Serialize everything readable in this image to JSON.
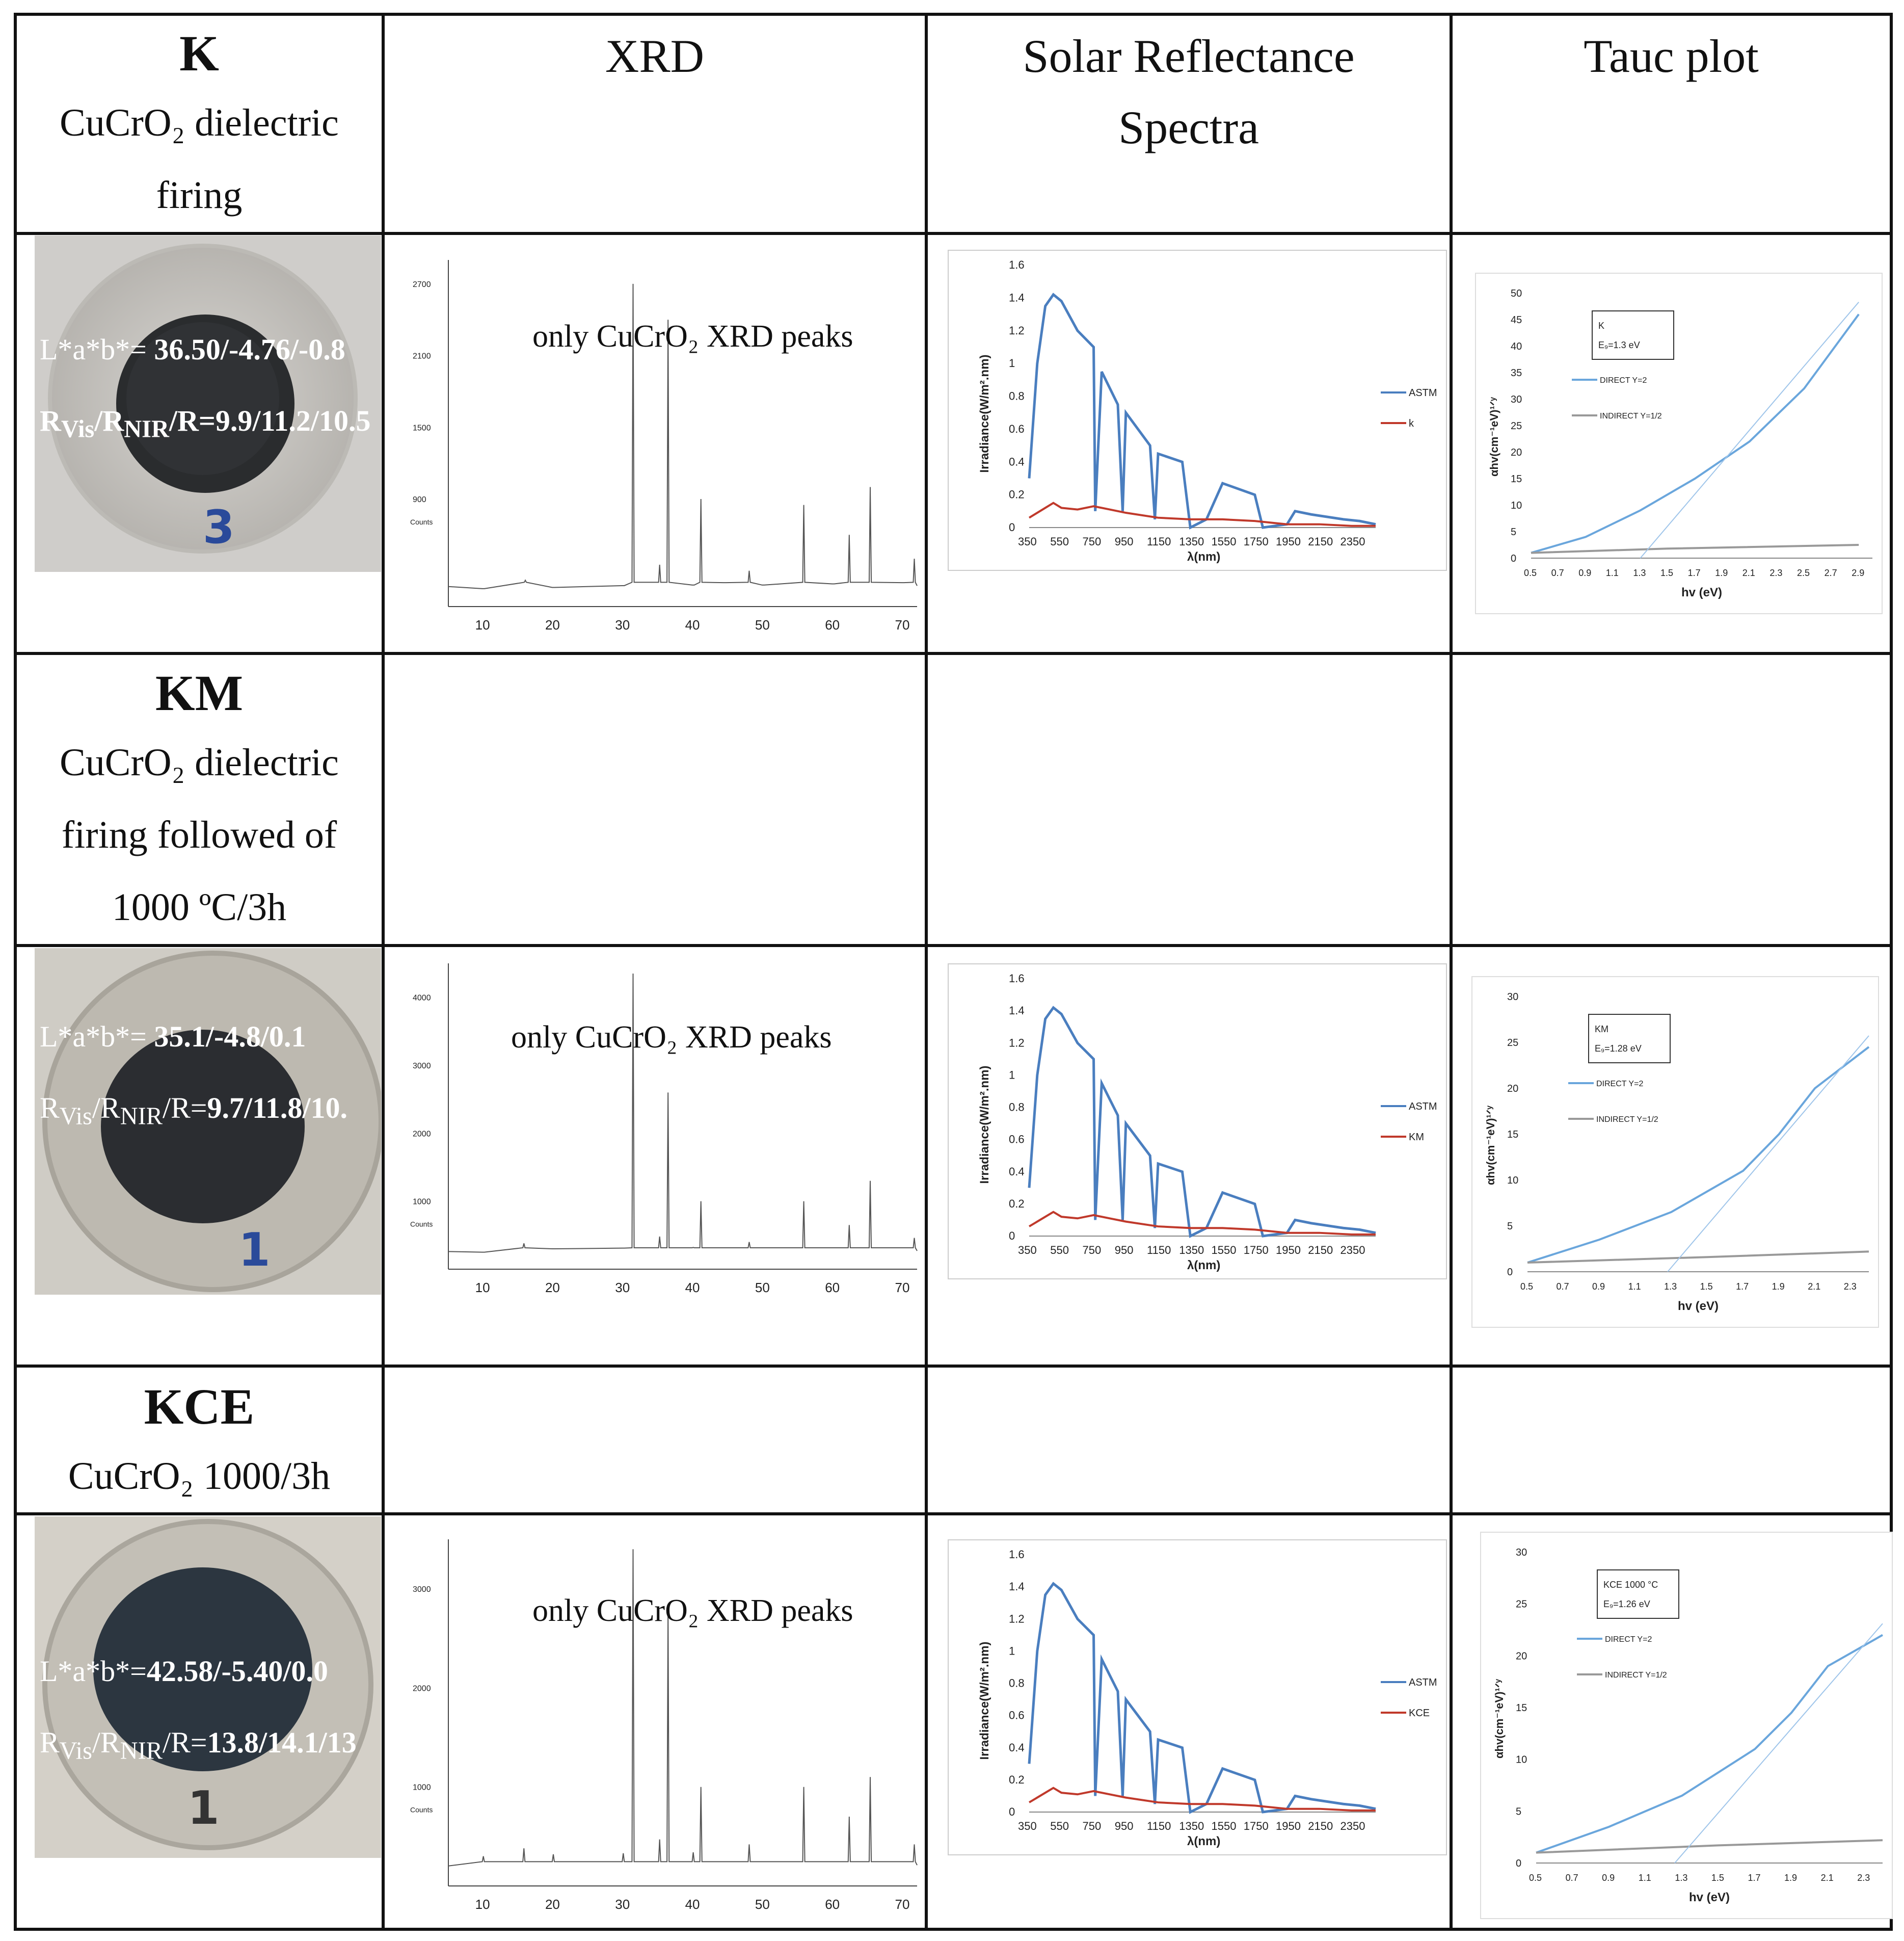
{
  "headers": {
    "xrd": "XRD",
    "solar_line1": "Solar Reflectance",
    "solar_line2": "Spectra",
    "tauc": "Tauc plot"
  },
  "samples": [
    {
      "code": "K",
      "desc_lines": [
        "CuCrO₂ dielectric",
        "firing"
      ],
      "photo": {
        "label_number": "3",
        "lab_prefix": "L*a*b*= ",
        "lab_values": "36.50/-4.76/-0.8",
        "r_prefix": "R",
        "r_vis_sub": "Vis",
        "r_sep": "/R",
        "r_nir_sub": "NIR",
        "r_mid": "/R=",
        "r_values": "9.9/11.2/10.5"
      },
      "xrd_note": "only CuCrO₂ XRD peaks",
      "solar_legend": [
        "ASTM",
        "k"
      ],
      "tauc_box": [
        "K",
        "E₉=1.3 eV"
      ]
    },
    {
      "code": "KM",
      "desc_lines": [
        "CuCrO₂ dielectric",
        "firing followed of",
        "1000 ºC/3h"
      ],
      "photo": {
        "label_number": "1",
        "lab_prefix": "L*a*b*=  ",
        "lab_values": "35.1/-4.8/0.1",
        "r_prefix": "R",
        "r_vis_sub": "Vis",
        "r_sep": "/R",
        "r_nir_sub": "NIR",
        "r_mid": "/R=",
        "r_values": "9.7/11.8/10."
      },
      "xrd_note": "only CuCrO₂ XRD peaks",
      "solar_legend": [
        "ASTM",
        "KM"
      ],
      "tauc_box": [
        "KM",
        "E₉=1.28 eV"
      ]
    },
    {
      "code": "KCE",
      "desc_lines": [
        "CuCrO₂ 1000/3h"
      ],
      "photo": {
        "label_number": "1",
        "lab_prefix": "L*a*b*=",
        "lab_values": "42.58/-5.40/0.0",
        "r_prefix": "R",
        "r_vis_sub": "Vis",
        "r_sep": "/R",
        "r_nir_sub": "NIR",
        "r_mid": "/R=",
        "r_values": "13.8/14.1/13"
      },
      "xrd_note": "only CuCrO₂ XRD peaks",
      "solar_legend": [
        "ASTM",
        "KCE"
      ],
      "tauc_box": [
        "KCE 1000 °C",
        "E₉=1.26 eV"
      ]
    }
  ],
  "chart_data": [
    {
      "type": "line",
      "panel": "xrd-K",
      "x": [
        10,
        16,
        20,
        30,
        31.4,
        35.2,
        36.4,
        40,
        41.1,
        44.5,
        48,
        50,
        55.8,
        60,
        62.3,
        65.3,
        70,
        71.6
      ],
      "y": [
        150,
        220,
        160,
        175,
        2700,
        350,
        2400,
        180,
        900,
        200,
        300,
        180,
        850,
        190,
        600,
        1000,
        200,
        400
      ],
      "xticks": [
        10,
        20,
        30,
        40,
        50,
        60,
        70
      ],
      "yticks": [
        900,
        1500,
        2100,
        2700
      ],
      "ylabel": "Counts",
      "ylim": [
        0,
        2900
      ],
      "xlim": [
        5,
        72
      ]
    },
    {
      "type": "line",
      "panel": "xrd-KM",
      "x": [
        10,
        15.8,
        20,
        30,
        31.4,
        35.2,
        36.4,
        40,
        41.1,
        48,
        55.8,
        62.3,
        65.3,
        71.6
      ],
      "y": [
        250,
        380,
        300,
        310,
        4350,
        480,
        2600,
        320,
        1000,
        400,
        1000,
        650,
        1300,
        460
      ],
      "xticks": [
        10,
        20,
        30,
        40,
        50,
        60,
        70
      ],
      "yticks": [
        1000,
        2000,
        3000,
        4000
      ],
      "ylabel": "Counts",
      "ylim": [
        0,
        4500
      ],
      "xlim": [
        5,
        72
      ]
    },
    {
      "type": "line",
      "panel": "xrd-KCE",
      "x": [
        10,
        15.8,
        20,
        30,
        31.4,
        35.2,
        36.4,
        40,
        41.1,
        48,
        55.8,
        62.3,
        65.3,
        71.6
      ],
      "y": [
        300,
        380,
        320,
        330,
        3400,
        470,
        2800,
        340,
        1000,
        420,
        1000,
        700,
        1100,
        420
      ],
      "xticks": [
        10,
        20,
        30,
        40,
        50,
        60,
        70
      ],
      "yticks": [
        1000,
        2000,
        3000
      ],
      "ylabel": "Counts",
      "ylim": [
        0,
        3500
      ],
      "xlim": [
        5,
        72
      ]
    },
    {
      "type": "line",
      "panel": "solar",
      "xlabel": "λ(nm)",
      "ylabel": "Irradiance(W/m².nm)",
      "xticks": [
        350,
        550,
        750,
        950,
        1150,
        1350,
        1550,
        1750,
        1950,
        2150,
        2350
      ],
      "yticks": [
        0,
        0.2,
        0.4,
        0.6,
        0.8,
        1,
        1.2,
        1.4,
        1.6
      ],
      "xlim": [
        350,
        2500
      ],
      "ylim": [
        0,
        1.6
      ],
      "series": [
        {
          "name": "ASTM",
          "x": [
            350,
            400,
            450,
            500,
            550,
            650,
            750,
            760,
            800,
            900,
            930,
            950,
            1100,
            1130,
            1150,
            1300,
            1350,
            1450,
            1550,
            1750,
            1800,
            1950,
            2000,
            2100,
            2300,
            2400,
            2500
          ],
          "y": [
            0.3,
            1.0,
            1.35,
            1.42,
            1.38,
            1.2,
            1.1,
            0.1,
            0.95,
            0.75,
            0.1,
            0.7,
            0.5,
            0.05,
            0.45,
            0.4,
            0.0,
            0.05,
            0.27,
            0.2,
            0.0,
            0.02,
            0.1,
            0.08,
            0.05,
            0.04,
            0.02
          ]
        },
        {
          "name": "k",
          "x": [
            350,
            450,
            500,
            550,
            650,
            750,
            850,
            950,
            1150,
            1350,
            1550,
            1750,
            1950,
            2150,
            2350,
            2500
          ],
          "y": [
            0.06,
            0.12,
            0.15,
            0.12,
            0.11,
            0.13,
            0.11,
            0.09,
            0.06,
            0.05,
            0.05,
            0.04,
            0.02,
            0.02,
            0.01,
            0.01
          ]
        }
      ]
    },
    {
      "type": "line",
      "panel": "tauc-K",
      "xlabel": "hv (eV)",
      "ylabel": "αhv(cm⁻¹eV)¹ᐟʸ",
      "xticks": [
        0.5,
        0.7,
        0.9,
        1.1,
        1.3,
        1.5,
        1.7,
        1.9,
        2.1,
        2.3,
        2.5,
        2.7,
        2.9
      ],
      "yticks": [
        0,
        5,
        10,
        15,
        20,
        25,
        30,
        35,
        40,
        45,
        50
      ],
      "xlim": [
        0.5,
        3.0
      ],
      "ylim": [
        0,
        50
      ],
      "series": [
        {
          "name": "DIRECT Y=2",
          "x": [
            0.5,
            0.9,
            1.3,
            1.7,
            2.1,
            2.5,
            2.9
          ],
          "y": [
            1,
            4,
            9,
            15,
            22,
            32,
            46
          ]
        },
        {
          "name": "INDIRECT Y=1/2",
          "x": [
            0.5,
            1.5,
            2.9
          ],
          "y": [
            1,
            1.8,
            2.5
          ]
        }
      ]
    },
    {
      "type": "line",
      "panel": "tauc-KM",
      "xlabel": "hv (eV)",
      "ylabel": "αhv(cm⁻¹eV)¹ᐟʸ",
      "xticks": [
        0.5,
        0.7,
        0.9,
        1.1,
        1.3,
        1.5,
        1.7,
        1.9,
        2.1,
        2.3
      ],
      "yticks": [
        0,
        5,
        10,
        15,
        20,
        25,
        30
      ],
      "xlim": [
        0.5,
        2.4
      ],
      "ylim": [
        0,
        30
      ],
      "series": [
        {
          "name": "DIRECT Y=2",
          "x": [
            0.5,
            0.9,
            1.3,
            1.7,
            1.9,
            2.1,
            2.4
          ],
          "y": [
            1,
            3.5,
            6.5,
            11,
            15,
            20,
            24.5
          ]
        },
        {
          "name": "INDIRECT Y=1/2",
          "x": [
            0.5,
            1.5,
            2.4
          ],
          "y": [
            1,
            1.6,
            2.2
          ]
        }
      ]
    },
    {
      "type": "line",
      "panel": "tauc-KCE",
      "xlabel": "hv (eV)",
      "ylabel": "αhv(cm⁻¹eV)¹ᐟʸ",
      "xticks": [
        0.5,
        0.7,
        0.9,
        1.1,
        1.3,
        1.5,
        1.7,
        1.9,
        2.1,
        2.3
      ],
      "yticks": [
        0,
        5,
        10,
        15,
        20,
        25,
        30
      ],
      "xlim": [
        0.5,
        2.4
      ],
      "ylim": [
        0,
        30
      ],
      "series": [
        {
          "name": "DIRECT Y=2",
          "x": [
            0.5,
            0.9,
            1.3,
            1.7,
            1.9,
            2.1,
            2.4
          ],
          "y": [
            1,
            3.5,
            6.5,
            11,
            14.5,
            19,
            22
          ]
        },
        {
          "name": "INDIRECT Y=1/2",
          "x": [
            0.5,
            1.5,
            2.4
          ],
          "y": [
            1,
            1.7,
            2.2
          ]
        }
      ]
    }
  ],
  "colors": {
    "astm": "#4a7ebf",
    "sample": "#c0392b",
    "direct": "#6aa6dc",
    "indirect": "#999999",
    "grid_line": "#111111"
  }
}
